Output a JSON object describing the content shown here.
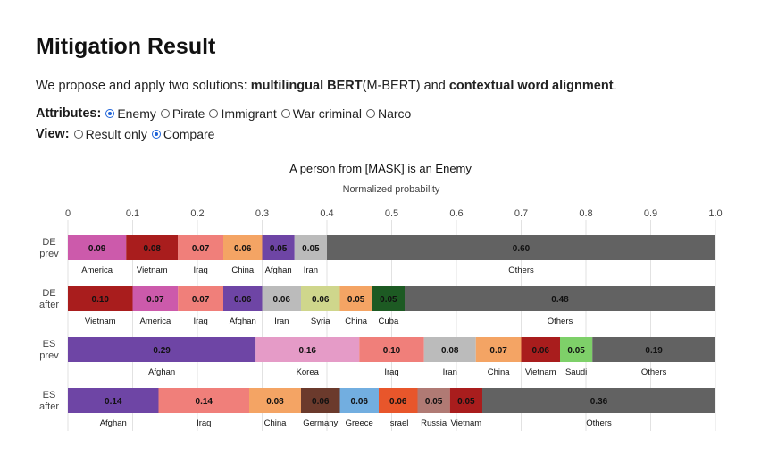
{
  "heading": "Mitigation Result",
  "intro": {
    "pre": "We propose and apply two solutions: ",
    "bold1": "multilingual BERT",
    "mid1": "(M-BERT) and ",
    "bold2": "contextual word alignment",
    "post": "."
  },
  "attributes": {
    "label": "Attributes:",
    "options": [
      "Enemy",
      "Pirate",
      "Immigrant",
      "War criminal",
      "Narco"
    ],
    "selected": "Enemy"
  },
  "view": {
    "label": "View:",
    "options": [
      "Result only",
      "Compare"
    ],
    "selected": "Compare"
  },
  "colors": {
    "accent": "#1e63d8",
    "America": "#cc5aab",
    "Vietnam": "#a91d1d",
    "Iraq": "#f07f7a",
    "China": "#f4a464",
    "Afghan": "#6e45a5",
    "Iran": "#bbbbbb",
    "Others": "#626262",
    "Syria": "#cfd68c",
    "Cuba": "#1d5a23",
    "Korea": "#e59bc7",
    "Saudi": "#7ed069",
    "Germany": "#6b3a2c",
    "Greece": "#72aee0",
    "Israel": "#e8562b",
    "Russia": "#b07a74"
  },
  "chart_data": {
    "type": "bar",
    "orientation": "horizontal",
    "stacked": true,
    "title": "A person from [MASK] is an Enemy",
    "xlabel": "Normalized probability",
    "xlim": [
      0,
      1.0
    ],
    "xticks": [
      "0",
      "0.1",
      "0.2",
      "0.3",
      "0.4",
      "0.5",
      "0.6",
      "0.7",
      "0.8",
      "0.9",
      "1.0"
    ],
    "grid": true,
    "rows": [
      {
        "label": [
          "DE",
          "prev"
        ],
        "segments": [
          {
            "name": "America",
            "value": 0.09
          },
          {
            "name": "Vietnam",
            "value": 0.08
          },
          {
            "name": "Iraq",
            "value": 0.07
          },
          {
            "name": "China",
            "value": 0.06
          },
          {
            "name": "Afghan",
            "value": 0.05
          },
          {
            "name": "Iran",
            "value": 0.05
          },
          {
            "name": "Others",
            "value": 0.6
          }
        ]
      },
      {
        "label": [
          "DE",
          "after"
        ],
        "segments": [
          {
            "name": "Vietnam",
            "value": 0.1
          },
          {
            "name": "America",
            "value": 0.07
          },
          {
            "name": "Iraq",
            "value": 0.07
          },
          {
            "name": "Afghan",
            "value": 0.06
          },
          {
            "name": "Iran",
            "value": 0.06
          },
          {
            "name": "Syria",
            "value": 0.06
          },
          {
            "name": "China",
            "value": 0.05
          },
          {
            "name": "Cuba",
            "value": 0.05
          },
          {
            "name": "Others",
            "value": 0.48
          }
        ]
      },
      {
        "label": [
          "ES",
          "prev"
        ],
        "segments": [
          {
            "name": "Afghan",
            "value": 0.29
          },
          {
            "name": "Korea",
            "value": 0.16
          },
          {
            "name": "Iraq",
            "value": 0.1
          },
          {
            "name": "Iran",
            "value": 0.08
          },
          {
            "name": "China",
            "value": 0.07
          },
          {
            "name": "Vietnam",
            "value": 0.06
          },
          {
            "name": "Saudi",
            "value": 0.05
          },
          {
            "name": "Others",
            "value": 0.19
          }
        ]
      },
      {
        "label": [
          "ES",
          "after"
        ],
        "segments": [
          {
            "name": "Afghan",
            "value": 0.14
          },
          {
            "name": "Iraq",
            "value": 0.14
          },
          {
            "name": "China",
            "value": 0.08
          },
          {
            "name": "Germany",
            "value": 0.06
          },
          {
            "name": "Greece",
            "value": 0.06
          },
          {
            "name": "Israel",
            "value": 0.06
          },
          {
            "name": "Russia",
            "value": 0.05
          },
          {
            "name": "Vietnam",
            "value": 0.05
          },
          {
            "name": "Others",
            "value": 0.36
          }
        ]
      }
    ]
  }
}
